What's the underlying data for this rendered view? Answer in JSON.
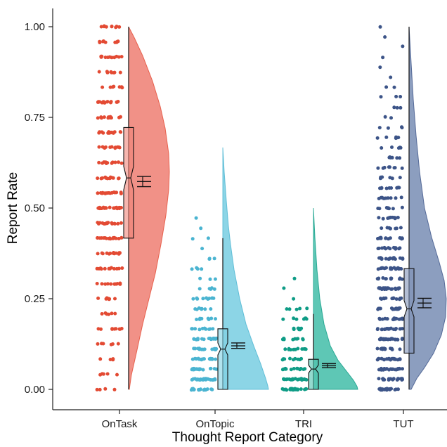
{
  "chart_data": {
    "type": "raincloud",
    "xlabel": "Thought Report Category",
    "ylabel": "Report Rate",
    "ylim": [
      0,
      1
    ],
    "yticks": [
      0.0,
      0.25,
      0.5,
      0.75,
      1.0
    ],
    "ytick_labels": [
      "0.00",
      "0.25",
      "0.50",
      "0.75",
      "1.00"
    ],
    "grid": false,
    "legend": "none",
    "categories": [
      "OnTask",
      "OnTopic",
      "TRI",
      "TUT"
    ],
    "series": [
      {
        "name": "OnTask",
        "color": "#e34a33",
        "fill": "#f0857a",
        "box": {
          "q1": 0.417,
          "median": 0.583,
          "q3": 0.722,
          "notch_low": 0.55,
          "notch_high": 0.615,
          "min": 0.0,
          "max": 1.0
        },
        "mean": 0.573,
        "ci": [
          0.559,
          0.587
        ],
        "density_peak": 0.6,
        "points_min": 0.0,
        "points_max": 1.0
      },
      {
        "name": "OnTopic",
        "color": "#4ab4d1",
        "fill": "#7fd0e3",
        "box": {
          "q1": 0.0,
          "median": 0.111,
          "q3": 0.167,
          "notch_low": 0.095,
          "notch_high": 0.128,
          "min": 0.0,
          "max": 0.417
        },
        "mean": 0.12,
        "ci": [
          0.113,
          0.128
        ],
        "density_peak": 0.04,
        "points_min": 0.0,
        "points_max": 0.667
      },
      {
        "name": "TRI",
        "color": "#0e9c86",
        "fill": "#4cc1ad",
        "box": {
          "q1": 0.0,
          "median": 0.056,
          "q3": 0.083,
          "notch_low": 0.045,
          "notch_high": 0.067,
          "min": 0.0,
          "max": 0.208
        },
        "mean": 0.065,
        "ci": [
          0.06,
          0.071
        ],
        "density_peak": 0.0,
        "points_min": 0.0,
        "points_max": 0.5
      },
      {
        "name": "TUT",
        "color": "#3c5488",
        "fill": "#8093b8",
        "box": {
          "q1": 0.1,
          "median": 0.222,
          "q3": 0.333,
          "notch_low": 0.2,
          "notch_high": 0.245,
          "min": 0.0,
          "max": 1.0
        },
        "mean": 0.238,
        "ci": [
          0.225,
          0.251
        ],
        "density_peak": 0.25,
        "points_min": 0.0,
        "points_max": 1.0
      }
    ]
  }
}
